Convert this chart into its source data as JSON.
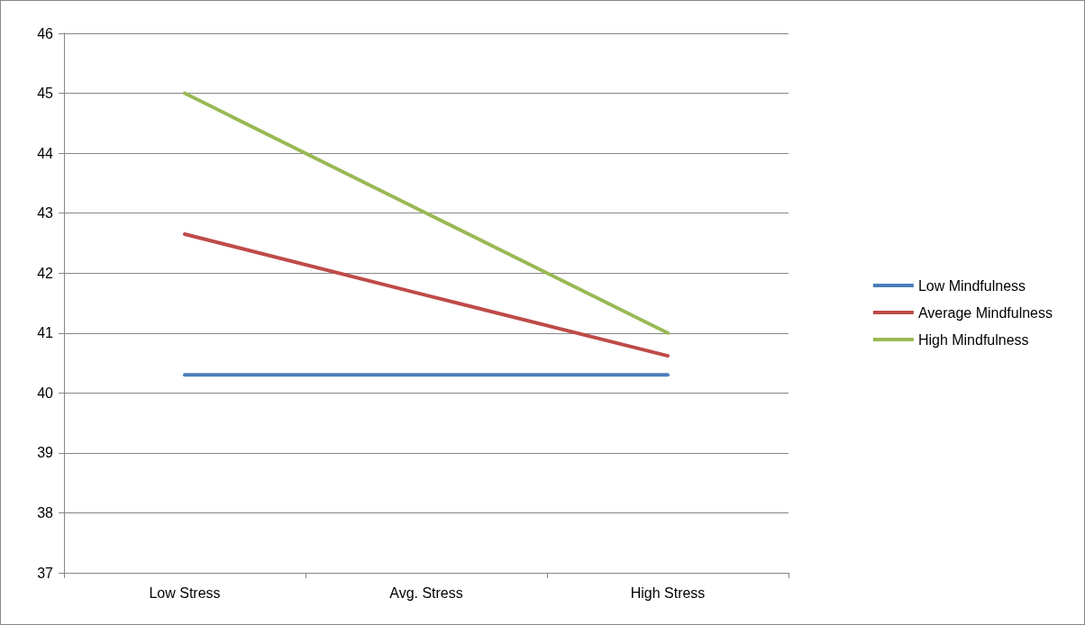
{
  "chart_data": {
    "type": "line",
    "categories": [
      "Low Stress",
      "Avg. Stress",
      "High Stress"
    ],
    "series": [
      {
        "name": "Low Mindfulness",
        "color": "#4a7ebb",
        "values": [
          40.3,
          40.3,
          40.3
        ]
      },
      {
        "name": "Average Mindfulness",
        "color": "#be4b48",
        "values": [
          42.65,
          41.63,
          40.62
        ]
      },
      {
        "name": "High Mindfulness",
        "color": "#98b954",
        "values": [
          45,
          43,
          41
        ]
      }
    ],
    "ylim": [
      37,
      46
    ],
    "yticks": [
      37,
      38,
      39,
      40,
      41,
      42,
      43,
      44,
      45,
      46
    ],
    "grid": "y",
    "legend": "right",
    "marker": "none",
    "line_style": "solid"
  }
}
